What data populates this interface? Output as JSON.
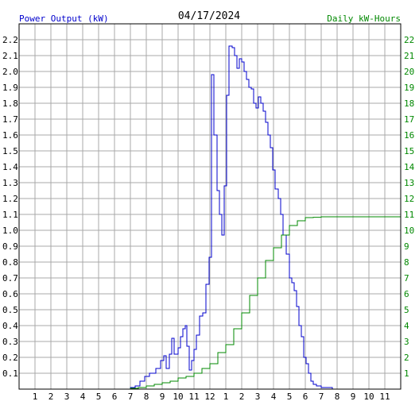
{
  "chart_data": {
    "type": "line",
    "title": "04/17/2024",
    "left_axis_label": "Power Output (kW)",
    "right_axis_label": "Daily kW-Hours",
    "x_ticks": [
      "1",
      "2",
      "3",
      "4",
      "5",
      "6",
      "7",
      "8",
      "9",
      "10",
      "11",
      "12",
      "1",
      "2",
      "3",
      "4",
      "5",
      "6",
      "7",
      "8",
      "9",
      "10",
      "11"
    ],
    "xlim": [
      0,
      24
    ],
    "y_left_ticks": [
      "0.1",
      "0.2",
      "0.3",
      "0.4",
      "0.5",
      "0.6",
      "0.7",
      "0.8",
      "0.9",
      "1.0",
      "1.1",
      "1.2",
      "1.3",
      "1.4",
      "1.5",
      "1.6",
      "1.7",
      "1.8",
      "1.9",
      "2.0",
      "2.1",
      "2.2"
    ],
    "ylim_left": [
      0,
      2.3
    ],
    "y_right_ticks": [
      "1",
      "2",
      "3",
      "4",
      "5",
      "6",
      "7",
      "8",
      "9",
      "10",
      "11",
      "12",
      "13",
      "14",
      "15",
      "16",
      "17",
      "18",
      "19",
      "20",
      "21",
      "22"
    ],
    "ylim_right": [
      0,
      23
    ],
    "grid": true,
    "colors": {
      "power": "#0000cc",
      "energy": "#008800",
      "grid": "#a8a8a8",
      "axis_text": "#000000",
      "left_label": "#0000cc",
      "right_label": "#008800"
    },
    "series": [
      {
        "axis": "left",
        "color": "#0000cc",
        "points": [
          [
            0,
            0
          ],
          [
            6.9,
            0
          ],
          [
            7.0,
            0.01
          ],
          [
            7.3,
            0.02
          ],
          [
            7.6,
            0.05
          ],
          [
            7.9,
            0.08
          ],
          [
            8.2,
            0.1
          ],
          [
            8.6,
            0.13
          ],
          [
            8.9,
            0.18
          ],
          [
            9.1,
            0.21
          ],
          [
            9.25,
            0.13
          ],
          [
            9.45,
            0.22
          ],
          [
            9.6,
            0.32
          ],
          [
            9.75,
            0.22
          ],
          [
            10.0,
            0.26
          ],
          [
            10.15,
            0.33
          ],
          [
            10.3,
            0.38
          ],
          [
            10.45,
            0.4
          ],
          [
            10.55,
            0.27
          ],
          [
            10.7,
            0.12
          ],
          [
            10.85,
            0.18
          ],
          [
            11.0,
            0.25
          ],
          [
            11.15,
            0.34
          ],
          [
            11.35,
            0.46
          ],
          [
            11.55,
            0.48
          ],
          [
            11.75,
            0.66
          ],
          [
            11.95,
            0.83
          ],
          [
            12.1,
            1.98
          ],
          [
            12.25,
            1.6
          ],
          [
            12.45,
            1.25
          ],
          [
            12.6,
            1.1
          ],
          [
            12.75,
            0.97
          ],
          [
            12.9,
            1.28
          ],
          [
            13.05,
            1.85
          ],
          [
            13.2,
            2.16
          ],
          [
            13.4,
            2.15
          ],
          [
            13.55,
            2.1
          ],
          [
            13.7,
            2.02
          ],
          [
            13.85,
            2.08
          ],
          [
            14.0,
            2.06
          ],
          [
            14.15,
            2.0
          ],
          [
            14.3,
            1.95
          ],
          [
            14.45,
            1.9
          ],
          [
            14.6,
            1.89
          ],
          [
            14.75,
            1.8
          ],
          [
            14.9,
            1.77
          ],
          [
            15.05,
            1.84
          ],
          [
            15.2,
            1.8
          ],
          [
            15.35,
            1.75
          ],
          [
            15.5,
            1.68
          ],
          [
            15.65,
            1.6
          ],
          [
            15.8,
            1.52
          ],
          [
            15.95,
            1.38
          ],
          [
            16.1,
            1.26
          ],
          [
            16.3,
            1.2
          ],
          [
            16.45,
            1.1
          ],
          [
            16.6,
            0.97
          ],
          [
            16.8,
            0.85
          ],
          [
            17.0,
            0.7
          ],
          [
            17.15,
            0.67
          ],
          [
            17.3,
            0.62
          ],
          [
            17.45,
            0.52
          ],
          [
            17.6,
            0.4
          ],
          [
            17.75,
            0.33
          ],
          [
            17.9,
            0.2
          ],
          [
            18.05,
            0.16
          ],
          [
            18.2,
            0.1
          ],
          [
            18.35,
            0.05
          ],
          [
            18.5,
            0.03
          ],
          [
            18.7,
            0.02
          ],
          [
            19.0,
            0.01
          ],
          [
            19.5,
            0.01
          ],
          [
            19.7,
            0.0
          ],
          [
            24,
            0
          ]
        ]
      },
      {
        "axis": "right",
        "color": "#008800",
        "points": [
          [
            0,
            0
          ],
          [
            6.8,
            0
          ],
          [
            7.0,
            0.05
          ],
          [
            7.5,
            0.1
          ],
          [
            8.0,
            0.2
          ],
          [
            8.5,
            0.3
          ],
          [
            9.0,
            0.4
          ],
          [
            9.5,
            0.5
          ],
          [
            10.0,
            0.7
          ],
          [
            10.5,
            0.8
          ],
          [
            11.0,
            1.0
          ],
          [
            11.5,
            1.3
          ],
          [
            12.0,
            1.6
          ],
          [
            12.5,
            2.3
          ],
          [
            13.0,
            2.8
          ],
          [
            13.5,
            3.8
          ],
          [
            14.0,
            4.8
          ],
          [
            14.5,
            5.9
          ],
          [
            15.0,
            7.0
          ],
          [
            15.5,
            8.1
          ],
          [
            16.0,
            8.9
          ],
          [
            16.5,
            9.7
          ],
          [
            17.0,
            10.3
          ],
          [
            17.5,
            10.6
          ],
          [
            18.0,
            10.8
          ],
          [
            18.5,
            10.82
          ],
          [
            19.0,
            10.85
          ],
          [
            24,
            10.85
          ]
        ]
      }
    ]
  }
}
